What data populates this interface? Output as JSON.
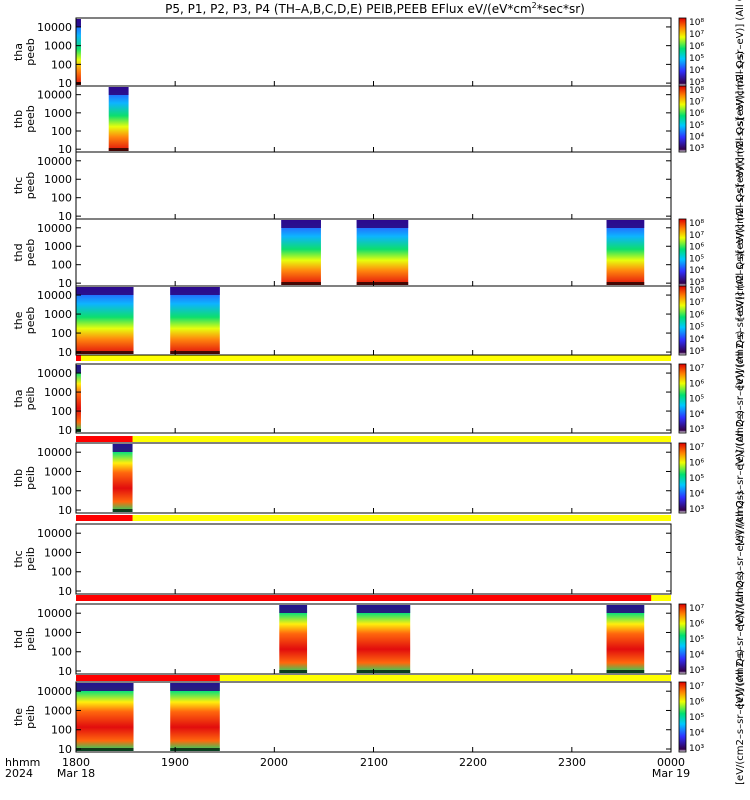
{
  "title": "P5, P1, P2, P3, P4 (TH–A,B,C,D,E) PEIB,PEEB EFlux eV/(eV*cm2*sec*sr)",
  "title_parts": {
    "pre": "P5, P1, P2, P3, P4 (TH–A,B,C,D,E) PEIB,PEEB EFlux eV/(eV*cm",
    "sup": "2",
    "post": "*sec*sr)"
  },
  "x_labels": {
    "row1": [
      "hhmm",
      "1800",
      "1900",
      "2000",
      "2100",
      "2200",
      "2300",
      "0000"
    ],
    "row2": [
      "2024",
      "Mar 18",
      "",
      "",
      "",
      "",
      "",
      "Mar 19"
    ]
  },
  "colors": {
    "flag_red": "#ff0000",
    "flag_yellow": "#ffff00",
    "background": "#ffffff"
  },
  "chart_data": {
    "type": "heatmap",
    "x_range_hours": [
      18,
      24
    ],
    "y_scale": "log",
    "y_range_eV": [
      7,
      30000
    ],
    "y_ticks": [
      "10000",
      "1000",
      "100",
      "10"
    ],
    "panels": [
      {
        "id": "tha-peeb",
        "ylabel": [
          "tha",
          "peeb"
        ],
        "cbar_label": "[eV/(cm2–s–sr–eV)] (All Qs)",
        "cbar_ticks": [
          "10⁸",
          "10⁷",
          "10⁶",
          "10⁵",
          "10⁴",
          "10³"
        ],
        "cbar_range_exp": [
          3,
          8
        ],
        "intervals": [
          [
            18.0,
            18.05
          ]
        ],
        "flag_red_until": null
      },
      {
        "id": "thb-peeb",
        "ylabel": [
          "thb",
          "peeb"
        ],
        "cbar_label": "[eV/(cm2–s–sr–eV)] (All Qs)",
        "cbar_ticks": [
          "10⁸",
          "10⁷",
          "10⁶",
          "10⁵",
          "10⁴",
          "10³"
        ],
        "cbar_range_exp": [
          3,
          8
        ],
        "intervals": [
          [
            18.33,
            18.53
          ]
        ],
        "flag_red_until": null
      },
      {
        "id": "thc-peeb",
        "ylabel": [
          "thc",
          "peeb"
        ],
        "cbar_label": "[eV/(cm2–s–sr–eV)] (All Qs)",
        "cbar_ticks": [],
        "cbar_range_exp": null,
        "intervals": [],
        "flag_red_until": null
      },
      {
        "id": "thd-peeb",
        "ylabel": [
          "thd",
          "peeb"
        ],
        "cbar_label": "[eV/(cm2–s–sr–eV)] (All Qs)",
        "cbar_ticks": [
          "10⁸",
          "10⁷",
          "10⁶",
          "10⁵",
          "10⁴",
          "10³"
        ],
        "cbar_range_exp": [
          3,
          8
        ],
        "intervals": [
          [
            20.07,
            20.47
          ],
          [
            20.83,
            21.35
          ],
          [
            23.35,
            23.73
          ]
        ],
        "flag_red_until": null
      },
      {
        "id": "the-peeb",
        "ylabel": [
          "the",
          "peeb"
        ],
        "cbar_label": "[eV/(cm2–s–sr–eV)] (All Qs)",
        "cbar_ticks": [
          "10⁸",
          "10⁷",
          "10⁶",
          "10⁵",
          "10⁴",
          "10³"
        ],
        "cbar_range_exp": [
          3,
          8
        ],
        "intervals": [
          [
            18.0,
            18.58
          ],
          [
            18.95,
            19.45
          ]
        ],
        "flag_red_until": 18.05
      },
      {
        "id": "tha-peib",
        "ylabel": [
          "tha",
          "peib"
        ],
        "cbar_label": "[eV/(cm2–s–sr–eV)] (All Qs)",
        "cbar_ticks": [
          "10⁷",
          "10⁶",
          "10⁵",
          "10⁴",
          "10³"
        ],
        "cbar_range_exp": [
          3,
          7
        ],
        "intervals": [
          [
            18.0,
            18.05
          ]
        ],
        "flag_red_until": 18.57
      },
      {
        "id": "thb-peib",
        "ylabel": [
          "thb",
          "peib"
        ],
        "cbar_label": "[eV/(cm2–s–sr–eV)] (All Qs)",
        "cbar_ticks": [
          "10⁷",
          "10⁶",
          "10⁵",
          "10⁴",
          "10³"
        ],
        "cbar_range_exp": [
          3,
          7
        ],
        "intervals": [
          [
            18.37,
            18.57
          ]
        ],
        "flag_red_until": 18.57
      },
      {
        "id": "thc-peib",
        "ylabel": [
          "thc",
          "peib"
        ],
        "cbar_label": "[eV/(cm2–s–sr–eV)] (All Qs)",
        "cbar_ticks": [],
        "cbar_range_exp": null,
        "intervals": [],
        "flag_red_until": 23.8
      },
      {
        "id": "thd-peib",
        "ylabel": [
          "thd",
          "peib"
        ],
        "cbar_label": "[eV/(cm2–s–sr–eV)] (All Qs)",
        "cbar_ticks": [
          "10⁷",
          "10⁶",
          "10⁵",
          "10⁴",
          "10³"
        ],
        "cbar_range_exp": [
          3,
          7
        ],
        "intervals": [
          [
            20.05,
            20.33
          ],
          [
            20.83,
            21.37
          ],
          [
            23.35,
            23.73
          ]
        ],
        "flag_red_until": 19.45
      },
      {
        "id": "the-peib",
        "ylabel": [
          "the",
          "peib"
        ],
        "cbar_label": "[eV/(cm2–s–sr–eV)] (All Qs)",
        "cbar_ticks": [
          "10⁷",
          "10⁶",
          "10⁵",
          "10⁴",
          "10³"
        ],
        "cbar_range_exp": [
          3,
          7
        ],
        "intervals": [
          [
            18.0,
            18.58
          ],
          [
            18.95,
            19.45
          ]
        ],
        "flag_red_until": null
      }
    ]
  }
}
